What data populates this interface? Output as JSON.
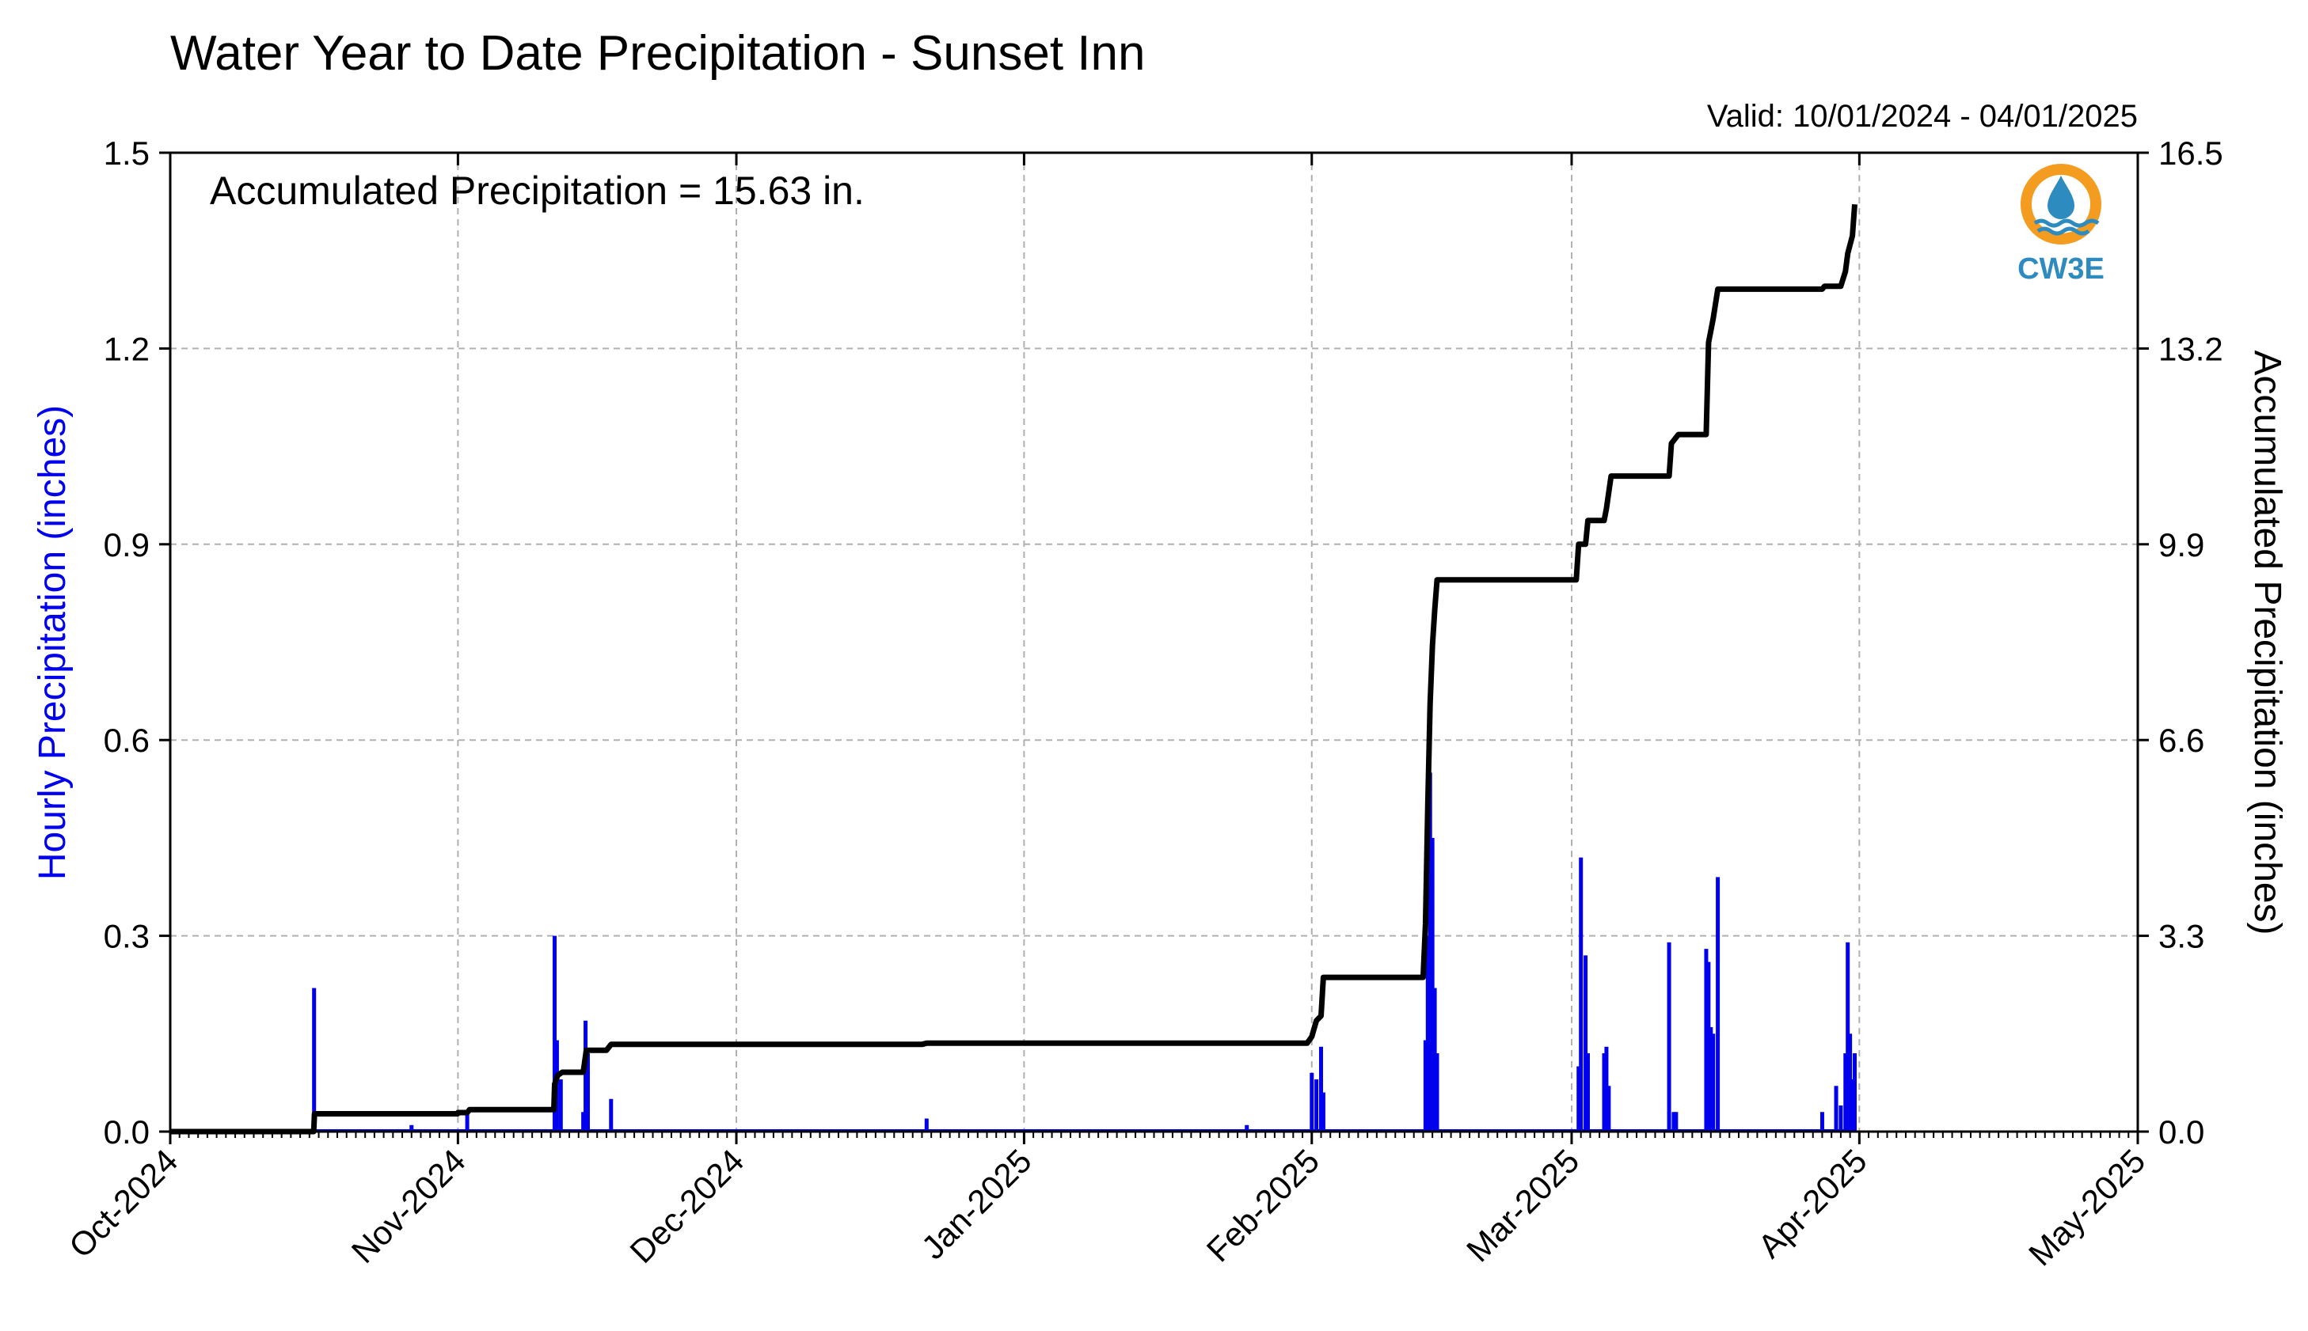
{
  "chart_data": {
    "type": "bar+line",
    "title": "Water Year to Date Precipitation - Sunset Inn",
    "subtitle": "Valid: 10/01/2024 - 04/01/2025",
    "annotation": "Accumulated Precipitation = 15.63 in.",
    "left_ylabel": "Hourly Precipitation (inches)",
    "right_ylabel": "Accumulated Precipitation (inches)",
    "left_ylim": [
      0,
      1.5
    ],
    "right_ylim": [
      0,
      16.5
    ],
    "left_yticks": [
      "0.0",
      "0.3",
      "0.6",
      "0.9",
      "1.2",
      "1.5"
    ],
    "right_yticks": [
      "0.0",
      "3.3",
      "6.6",
      "9.9",
      "13.2",
      "16.5"
    ],
    "x_range": [
      "2024-10-01",
      "2025-05-01"
    ],
    "x_ticks": [
      "Oct-2024",
      "Nov-2024",
      "Dec-2024",
      "Jan-2025",
      "Feb-2025",
      "Mar-2025",
      "Apr-2025",
      "May-2025"
    ],
    "grid": true,
    "legend": "none",
    "colors": {
      "hourly": "#0000ee",
      "accumulated": "#000000",
      "grid": "#b0b0b0",
      "left_label": "#0000ee"
    },
    "series": [
      {
        "name": "Hourly Precipitation",
        "kind": "bar",
        "points": [
          [
            "2024-10-16T12:00",
            0.22
          ],
          [
            "2024-10-27T00:00",
            0.01
          ],
          [
            "2024-11-02T00:00",
            0.03
          ],
          [
            "2024-11-11T10:00",
            0.3
          ],
          [
            "2024-11-11T16:00",
            0.14
          ],
          [
            "2024-11-12T02:00",
            0.08
          ],
          [
            "2024-11-14T12:00",
            0.03
          ],
          [
            "2024-11-14T18:00",
            0.17
          ],
          [
            "2024-11-15T00:00",
            0.12
          ],
          [
            "2024-11-17T12:00",
            0.05
          ],
          [
            "2024-12-21T12:00",
            0.02
          ],
          [
            "2025-01-25T00:00",
            0.01
          ],
          [
            "2025-02-01T00:00",
            0.09
          ],
          [
            "2025-02-01T12:00",
            0.08
          ],
          [
            "2025-02-02T00:00",
            0.13
          ],
          [
            "2025-02-02T06:00",
            0.06
          ],
          [
            "2025-02-13T06:00",
            0.14
          ],
          [
            "2025-02-13T12:00",
            0.3
          ],
          [
            "2025-02-13T18:00",
            0.55
          ],
          [
            "2025-02-14T00:00",
            0.45
          ],
          [
            "2025-02-14T06:00",
            0.22
          ],
          [
            "2025-02-14T12:00",
            0.12
          ],
          [
            "2025-03-01T18:00",
            0.1
          ],
          [
            "2025-03-02T00:00",
            0.42
          ],
          [
            "2025-03-02T12:00",
            0.27
          ],
          [
            "2025-03-02T18:00",
            0.12
          ],
          [
            "2025-03-04T12:00",
            0.12
          ],
          [
            "2025-03-04T18:00",
            0.13
          ],
          [
            "2025-03-05T00:00",
            0.07
          ],
          [
            "2025-03-11T12:00",
            0.29
          ],
          [
            "2025-03-12T00:00",
            0.03
          ],
          [
            "2025-03-12T06:00",
            0.03
          ],
          [
            "2025-03-15T12:00",
            0.28
          ],
          [
            "2025-03-15T18:00",
            0.26
          ],
          [
            "2025-03-16T00:00",
            0.16
          ],
          [
            "2025-03-16T06:00",
            0.15
          ],
          [
            "2025-03-16T18:00",
            0.39
          ],
          [
            "2025-03-28T00:00",
            0.03
          ],
          [
            "2025-03-29T12:00",
            0.07
          ],
          [
            "2025-03-30T00:00",
            0.04
          ],
          [
            "2025-03-30T12:00",
            0.12
          ],
          [
            "2025-03-30T18:00",
            0.29
          ],
          [
            "2025-03-31T00:00",
            0.15
          ],
          [
            "2025-03-31T06:00",
            0.08
          ],
          [
            "2025-03-31T12:00",
            0.12
          ]
        ]
      },
      {
        "name": "Accumulated Precipitation",
        "kind": "line",
        "points": [
          [
            "2024-10-01T00:00",
            0.0
          ],
          [
            "2024-10-16T11:00",
            0.0
          ],
          [
            "2024-10-16T13:00",
            0.3
          ],
          [
            "2024-10-31T23:00",
            0.3
          ],
          [
            "2024-11-01T00:00",
            0.32
          ],
          [
            "2024-11-02T00:00",
            0.32
          ],
          [
            "2024-11-02T06:00",
            0.37
          ],
          [
            "2024-11-11T08:00",
            0.37
          ],
          [
            "2024-11-11T10:00",
            0.8
          ],
          [
            "2024-11-11T18:00",
            0.95
          ],
          [
            "2024-11-12T06:00",
            1.0
          ],
          [
            "2024-11-14T12:00",
            1.0
          ],
          [
            "2024-11-14T20:00",
            1.37
          ],
          [
            "2024-11-17T00:00",
            1.37
          ],
          [
            "2024-11-17T12:00",
            1.47
          ],
          [
            "2024-12-21T00:00",
            1.47
          ],
          [
            "2024-12-21T12:00",
            1.49
          ],
          [
            "2025-01-31T12:00",
            1.49
          ],
          [
            "2025-02-01T00:00",
            1.6
          ],
          [
            "2025-02-01T12:00",
            1.87
          ],
          [
            "2025-02-02T00:00",
            1.95
          ],
          [
            "2025-02-02T06:00",
            2.6
          ],
          [
            "2025-02-13T00:00",
            2.6
          ],
          [
            "2025-02-13T06:00",
            3.5
          ],
          [
            "2025-02-13T12:00",
            5.5
          ],
          [
            "2025-02-13T18:00",
            7.2
          ],
          [
            "2025-02-14T00:00",
            8.2
          ],
          [
            "2025-02-14T06:00",
            8.8
          ],
          [
            "2025-02-14T12:00",
            9.3
          ],
          [
            "2025-03-01T12:00",
            9.3
          ],
          [
            "2025-03-01T18:00",
            9.9
          ],
          [
            "2025-03-02T12:00",
            9.9
          ],
          [
            "2025-03-02T18:00",
            10.3
          ],
          [
            "2025-03-04T12:00",
            10.3
          ],
          [
            "2025-03-04T18:00",
            10.5
          ],
          [
            "2025-03-05T06:00",
            11.05
          ],
          [
            "2025-03-11T12:00",
            11.05
          ],
          [
            "2025-03-11T18:00",
            11.6
          ],
          [
            "2025-03-12T12:00",
            11.75
          ],
          [
            "2025-03-15T12:00",
            11.75
          ],
          [
            "2025-03-15T18:00",
            13.3
          ],
          [
            "2025-03-16T06:00",
            13.7
          ],
          [
            "2025-03-16T18:00",
            14.2
          ],
          [
            "2025-03-28T00:00",
            14.2
          ],
          [
            "2025-03-28T06:00",
            14.25
          ],
          [
            "2025-03-30T00:00",
            14.25
          ],
          [
            "2025-03-30T12:00",
            14.5
          ],
          [
            "2025-03-30T18:00",
            14.8
          ],
          [
            "2025-03-31T06:00",
            15.1
          ],
          [
            "2025-03-31T12:00",
            15.63
          ]
        ]
      }
    ]
  },
  "logo": {
    "text": "CW3E",
    "icon": "water-drop-sun-icon",
    "colors": {
      "ring": "#f39c1f",
      "drop": "#2e8bc0",
      "waves": "#2e8bc0",
      "text": "#2e8bc0"
    }
  }
}
